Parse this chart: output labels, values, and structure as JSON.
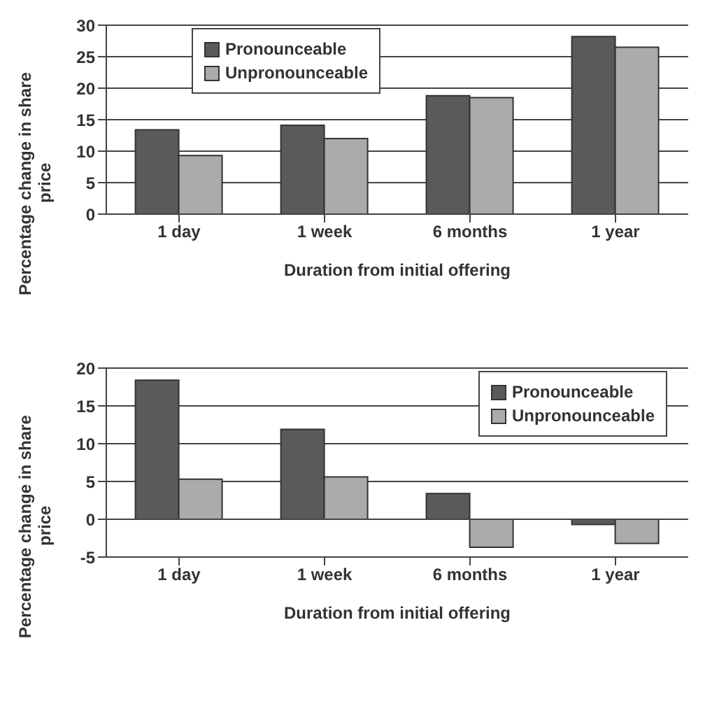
{
  "chart_data": [
    {
      "type": "bar",
      "categories": [
        "1 day",
        "1 week",
        "6 months",
        "1 year"
      ],
      "xlabel": "Duration from initial offering",
      "ylabel": "Percentage change in share price",
      "ylim": [
        0,
        30
      ],
      "yticks": [
        0,
        5,
        10,
        15,
        20,
        25,
        30
      ],
      "grid": "y",
      "legend": "top left",
      "series": [
        {
          "name": "Pronounceable",
          "color": "#5a5a5a",
          "values": [
            13.4,
            14.1,
            18.8,
            28.2
          ]
        },
        {
          "name": "Unpronounceable",
          "color": "#ababab",
          "values": [
            9.3,
            12.0,
            18.5,
            26.5
          ]
        }
      ]
    },
    {
      "type": "bar",
      "categories": [
        "1 day",
        "1 week",
        "6 months",
        "1 year"
      ],
      "xlabel": "Duration from initial offering",
      "ylabel": "Percentage change in share price",
      "ylim": [
        -5,
        20
      ],
      "yticks": [
        -5,
        0,
        5,
        10,
        15,
        20
      ],
      "grid": "y",
      "legend": "top right",
      "series": [
        {
          "name": "Pronounceable",
          "color": "#5a5a5a",
          "values": [
            18.4,
            11.9,
            3.4,
            -0.7
          ]
        },
        {
          "name": "Unpronounceable",
          "color": "#ababab",
          "values": [
            5.3,
            5.6,
            -3.7,
            -3.2
          ]
        }
      ]
    }
  ]
}
